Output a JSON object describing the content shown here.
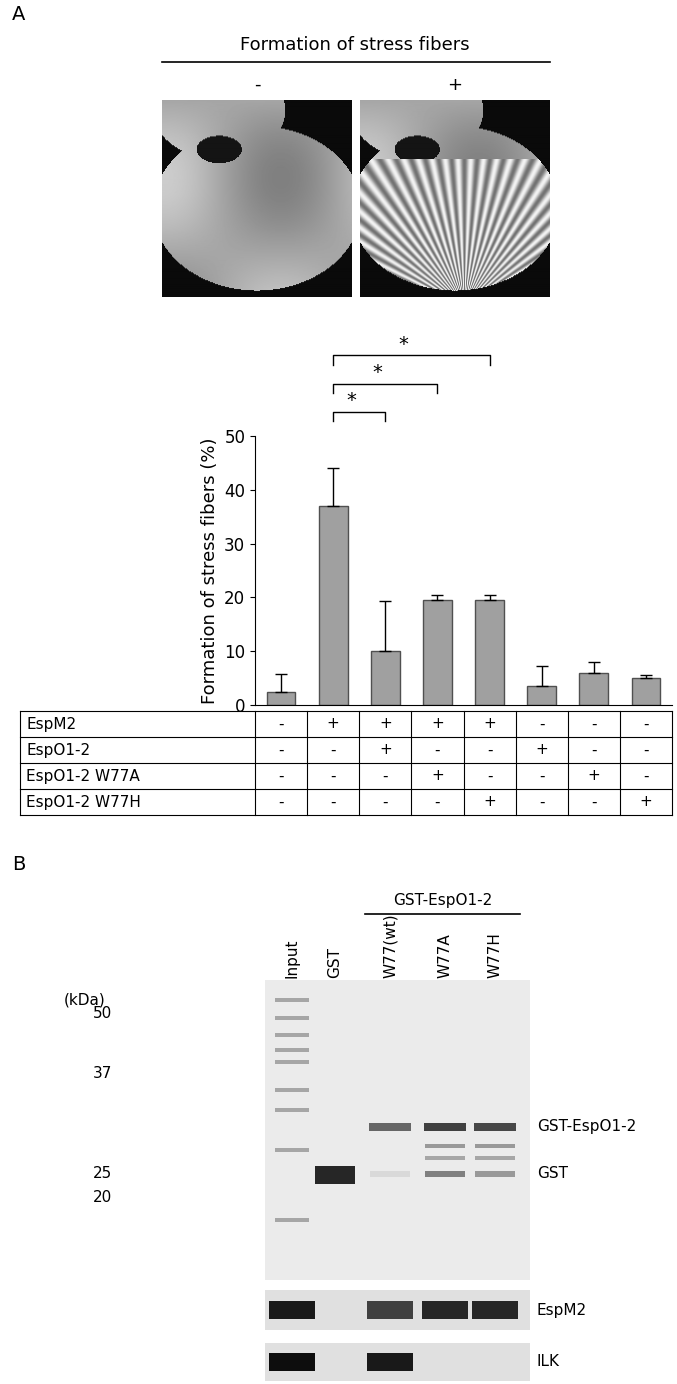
{
  "panels": [
    "A",
    "B"
  ],
  "images": {
    "title": "Formation of stress fibers",
    "labels": [
      "-",
      "+"
    ]
  },
  "chart_data": {
    "type": "bar",
    "ylabel": "Formation of stress fibers (%)",
    "categories": [
      null,
      null,
      null,
      null,
      null,
      null,
      null,
      null
    ],
    "values": [
      2.5,
      37,
      10,
      19.5,
      19.5,
      3.5,
      6,
      5
    ],
    "errors": [
      3.2,
      7,
      9.3,
      1,
      1,
      3.8,
      2,
      0.5
    ],
    "color": "#a0a0a0",
    "ylim": [
      0,
      50
    ],
    "yticks": [
      0,
      10,
      20,
      30,
      40,
      50
    ],
    "tick_labels": "y",
    "annotations": [
      {
        "from": 1,
        "to": 2,
        "text": "*"
      },
      {
        "from": 1,
        "to": 3,
        "text": "*"
      },
      {
        "from": 1,
        "to": 4,
        "text": "*"
      }
    ]
  },
  "table": {
    "rows": [
      {
        "label": "EspM2",
        "cells": [
          "-",
          "+",
          "+",
          "+",
          "+",
          "-",
          "-",
          "-"
        ]
      },
      {
        "label": "EspO1-2",
        "cells": [
          "-",
          "-",
          "+",
          "-",
          "-",
          "+",
          "-",
          "-"
        ]
      },
      {
        "label": "EspO1-2 W77A",
        "cells": [
          "-",
          "-",
          "-",
          "+",
          "-",
          "-",
          "+",
          "-"
        ]
      },
      {
        "label": "EspO1-2 W77H",
        "cells": [
          "-",
          "-",
          "-",
          "-",
          "+",
          "-",
          "-",
          "+"
        ]
      }
    ]
  },
  "blot": {
    "kda_label": "(kDa)",
    "markers": [
      50,
      37,
      25,
      20
    ],
    "group_label": "GST-EspO1-2",
    "lanes": [
      "Input",
      "GST",
      "W77(wt)",
      "W77A",
      "W77H"
    ],
    "bands": [
      "GST-EspO1-2",
      "GST"
    ],
    "strips": [
      "EspM2",
      "ILK"
    ]
  }
}
